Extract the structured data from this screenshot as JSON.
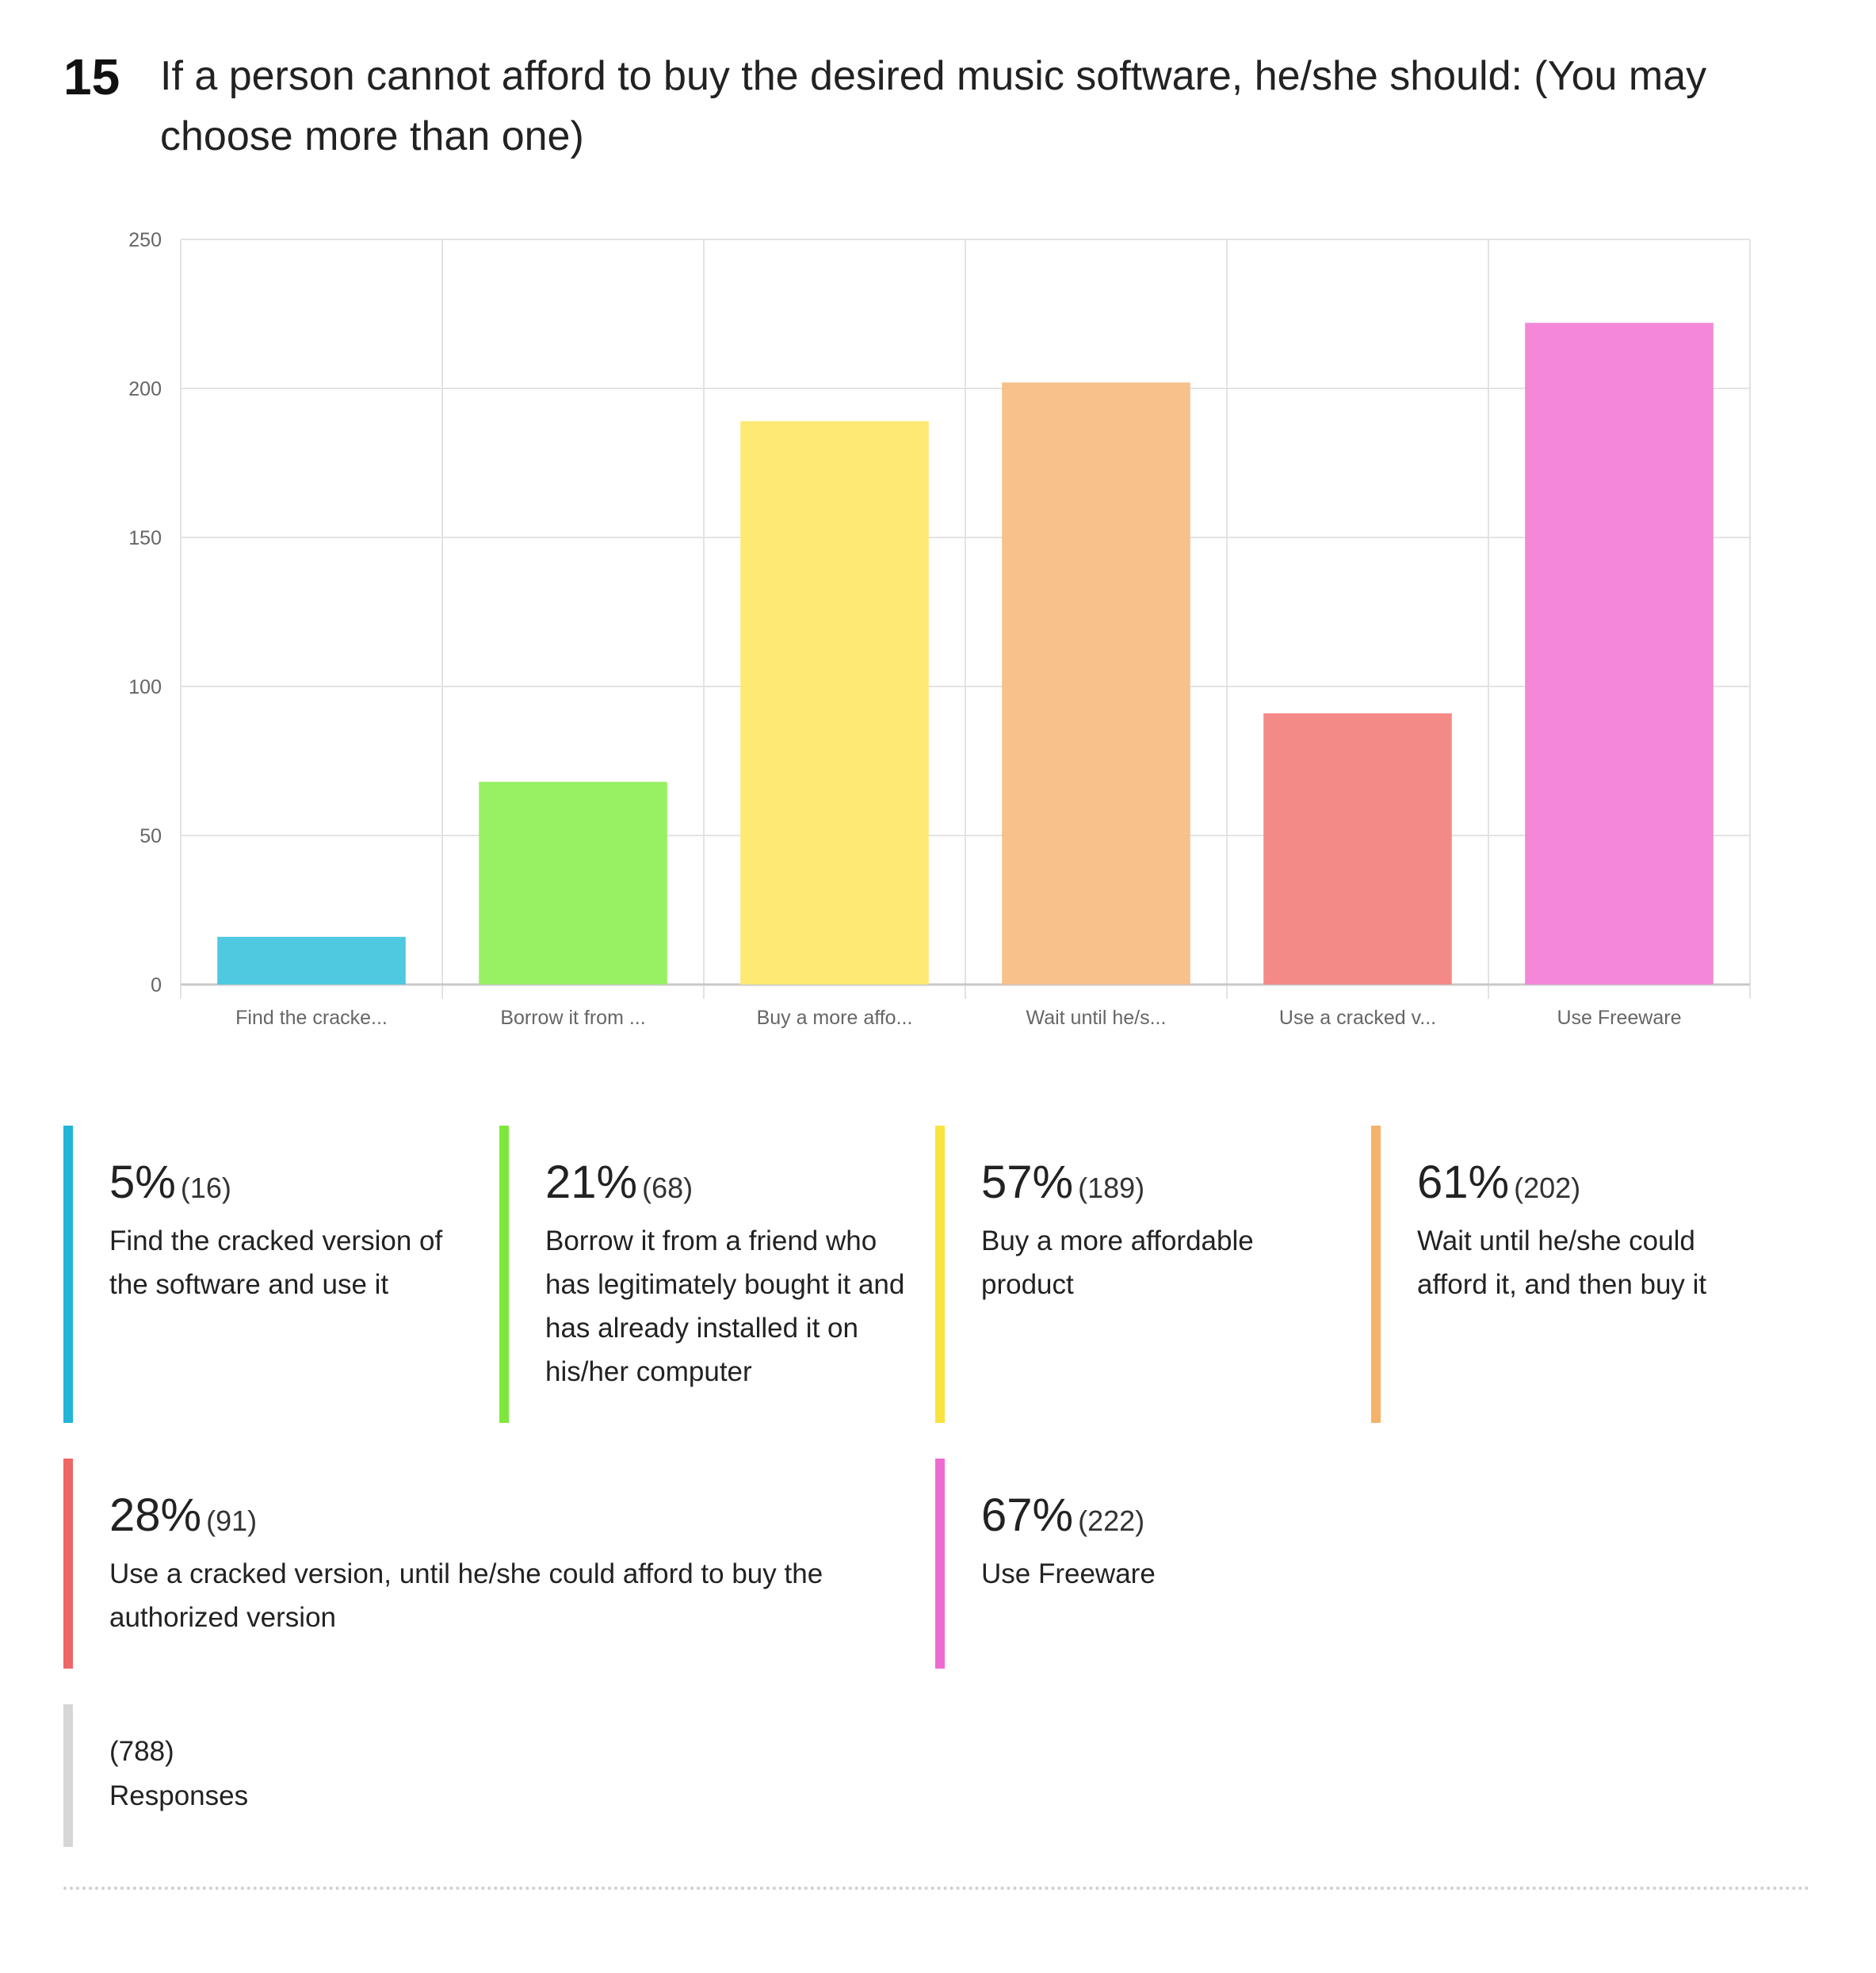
{
  "question": {
    "number": "15",
    "title": "If a person cannot afford to buy the desired music software, he/she should: (You may choose more than one)"
  },
  "chart_data": {
    "type": "bar",
    "categories": [
      "Find the cracke...",
      "Borrow it from ...",
      "Buy a more affo...",
      "Wait until he/s...",
      "Use a cracked v...",
      "Use Freeware"
    ],
    "values": [
      16,
      68,
      189,
      202,
      91,
      222
    ],
    "colors": [
      "#4ec9df",
      "#98f063",
      "#fde973",
      "#f6c18b",
      "#f48a87",
      "#f487d8"
    ],
    "ylim": [
      0,
      250
    ],
    "yticks": [
      0,
      50,
      100,
      150,
      200,
      250
    ],
    "grid": true,
    "title": "",
    "xlabel": "",
    "ylabel": ""
  },
  "legend": [
    {
      "pct": "5%",
      "count": "(16)",
      "label": "Find the cracked version of the software and use it",
      "color": "#22b5d6"
    },
    {
      "pct": "21%",
      "count": "(68)",
      "label": "Borrow it from a friend who has legitimately bought it and has already installed it on his/her computer",
      "color": "#7de83b"
    },
    {
      "pct": "57%",
      "count": "(189)",
      "label": "Buy a more affordable product",
      "color": "#fbe33f"
    },
    {
      "pct": "61%",
      "count": "(202)",
      "label": "Wait until he/she could afford it, and then buy it",
      "color": "#f5b26b"
    },
    {
      "pct": "28%",
      "count": "(91)",
      "label": "Use a cracked version, until he/she could afford to buy the authorized version",
      "color": "#ee6766"
    },
    {
      "pct": "67%",
      "count": "(222)",
      "label": "Use Freeware",
      "color": "#ef6ad0"
    }
  ],
  "responses": {
    "count": "(788)",
    "label": "Responses",
    "color": "#d6d6d6"
  }
}
